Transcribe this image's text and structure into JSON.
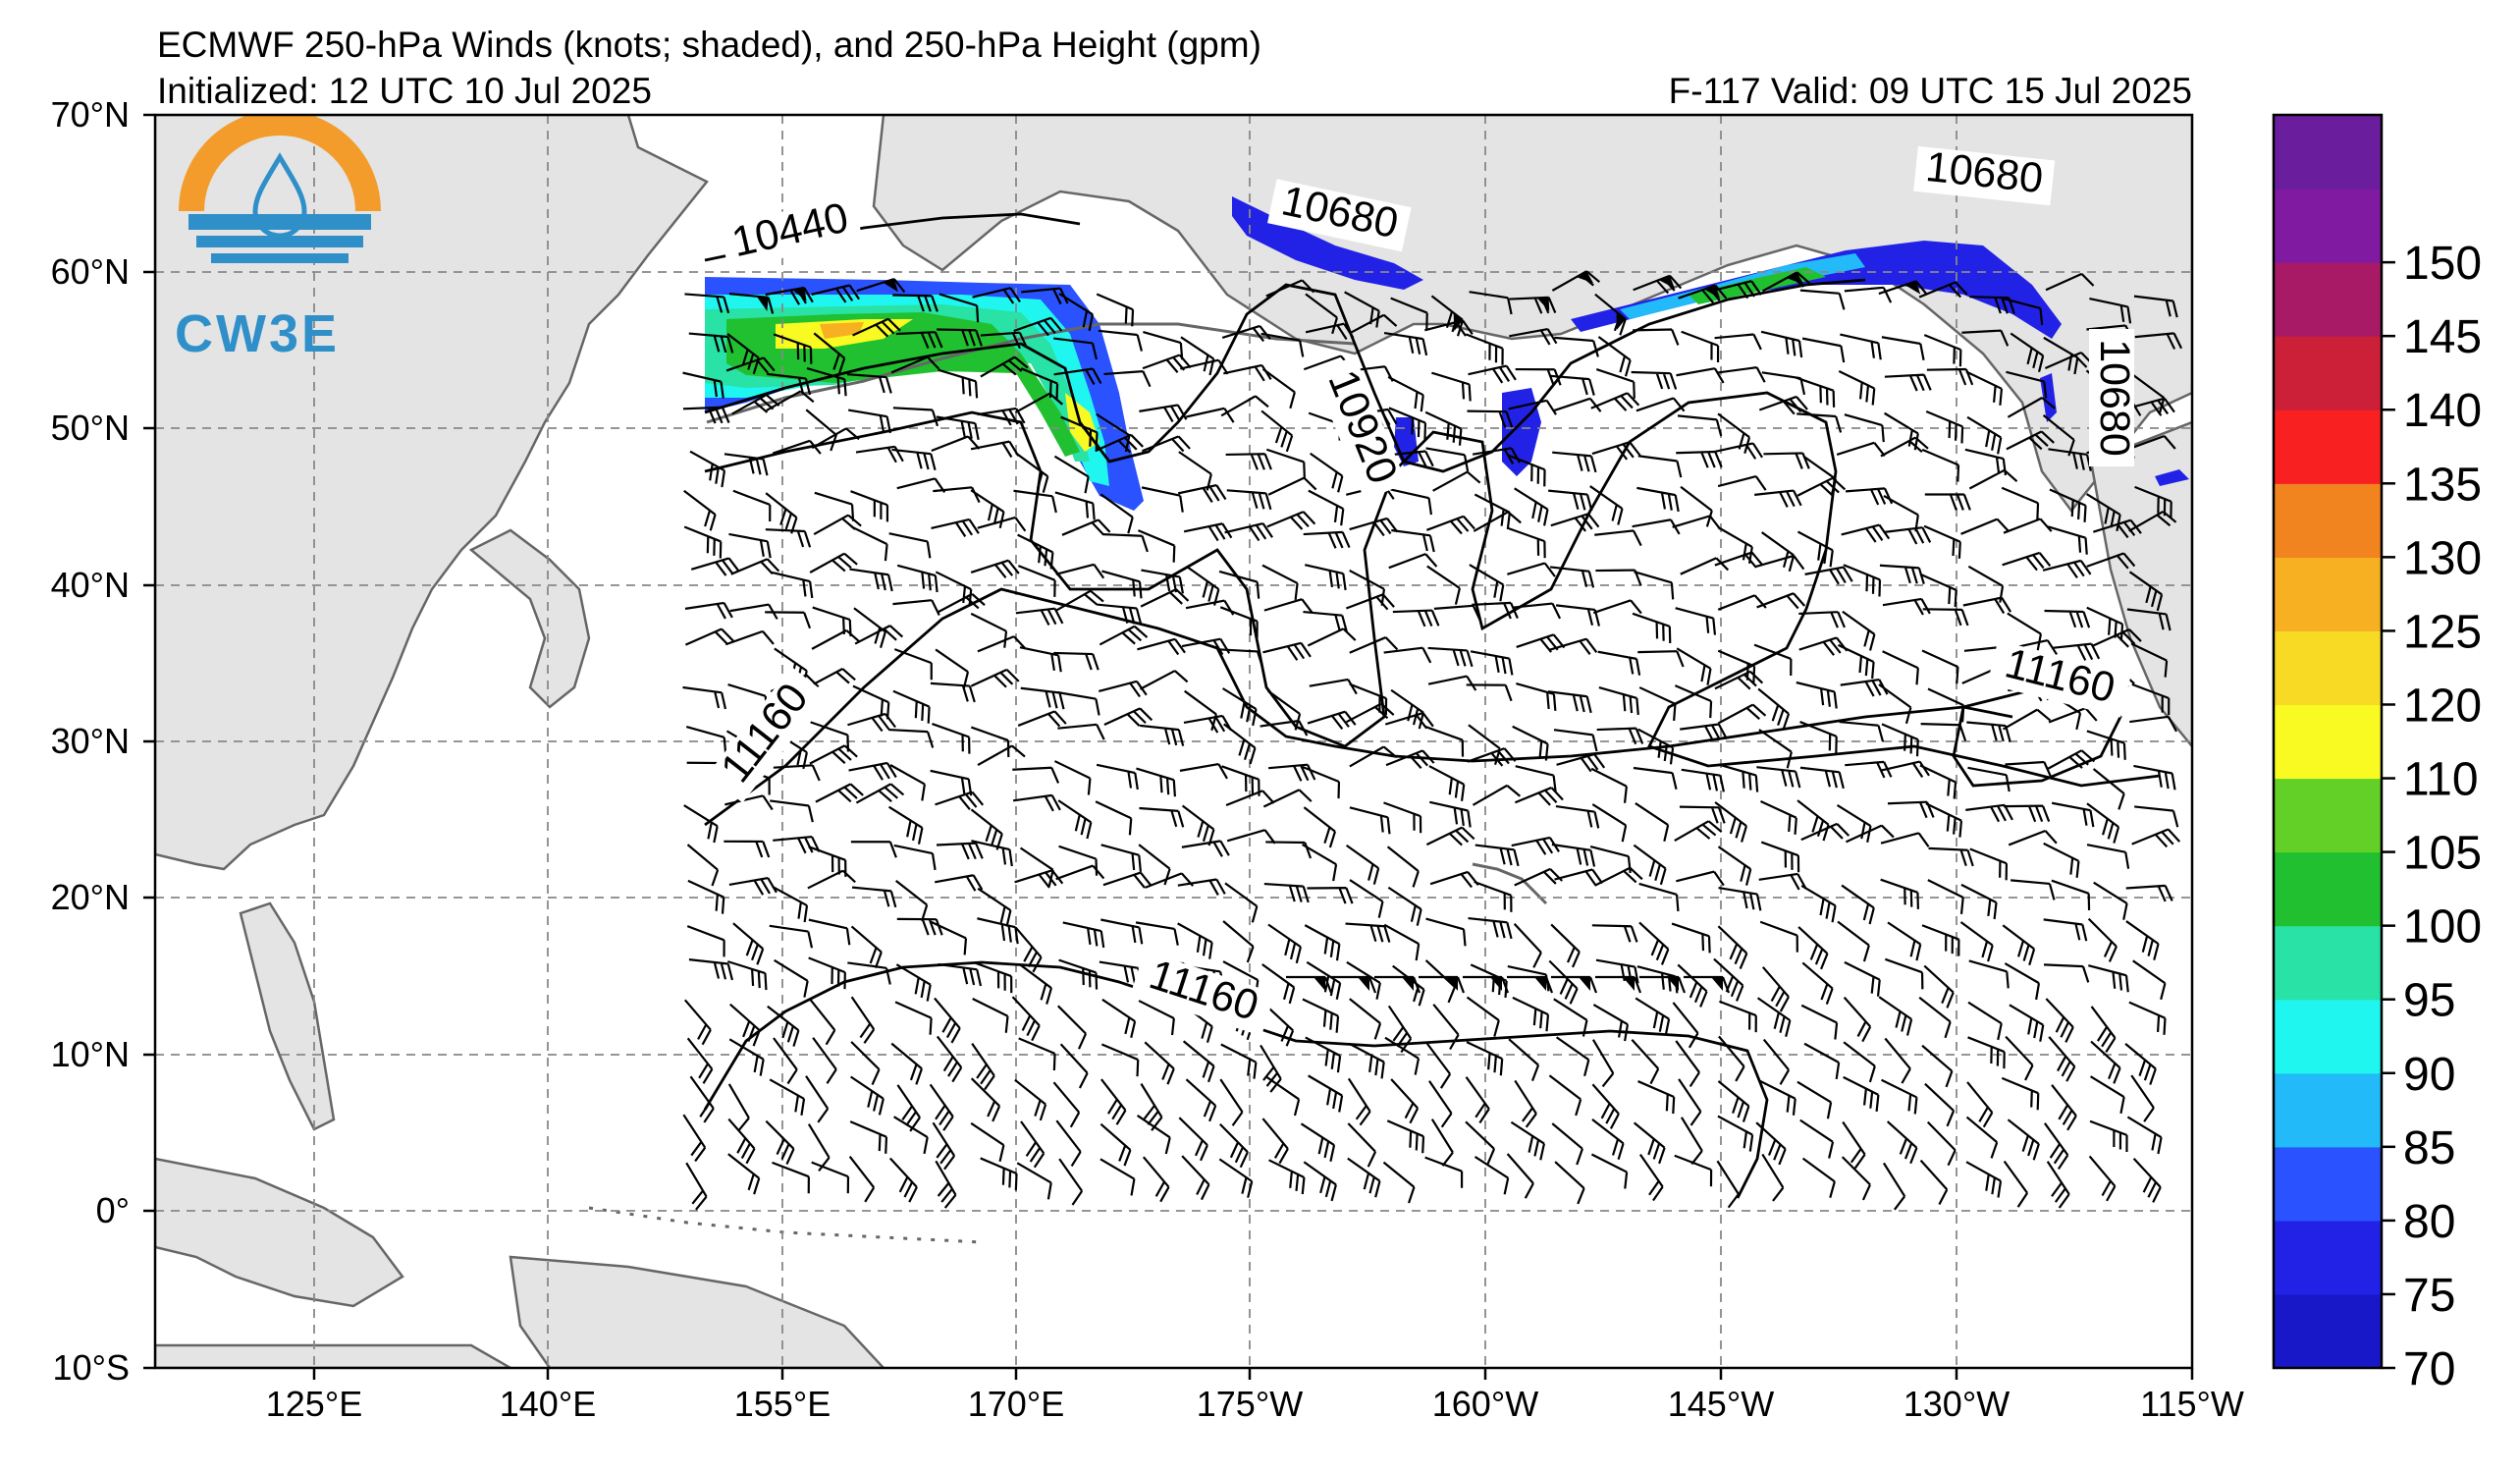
{
  "header": {
    "title": "ECMWF 250-hPa Winds (knots; shaded), and 250-hPa Height (gpm)",
    "initialized": "Initialized: 12 UTC 10 Jul 2025",
    "forecast_valid": "F-117  Valid: 09 UTC 15 Jul 2025"
  },
  "logo": {
    "text": "CW3E"
  },
  "map": {
    "lat_labels": [
      "70°N",
      "60°N",
      "50°N",
      "40°N",
      "30°N",
      "20°N",
      "10°N",
      "0°",
      "10°S"
    ],
    "lon_labels": [
      "125°E",
      "140°E",
      "155°E",
      "170°E",
      "175°W",
      "160°W",
      "145°W",
      "130°W",
      "115°W"
    ],
    "contour_labels": [
      {
        "text": "10440"
      },
      {
        "text": "10680"
      },
      {
        "text": "10680"
      },
      {
        "text": "10680"
      },
      {
        "text": "10920"
      },
      {
        "text": "11160"
      },
      {
        "text": "11160"
      },
      {
        "text": "11160"
      }
    ],
    "colors": {
      "land": "#e4e4e4",
      "ocean": "#ffffff",
      "grid": "#888888",
      "coast": "#666666"
    }
  },
  "colorbar": {
    "ticks": [
      "70",
      "75",
      "80",
      "85",
      "90",
      "95",
      "100",
      "105",
      "110",
      "120",
      "125",
      "130",
      "135",
      "140",
      "145",
      "150"
    ],
    "colors": [
      "#1818c8",
      "#2222e6",
      "#2a52ff",
      "#22baf8",
      "#20f6f0",
      "#28e2a6",
      "#20c030",
      "#62d026",
      "#f8fa22",
      "#f8da24",
      "#f6b022",
      "#f28420",
      "#f82020",
      "#cc2038",
      "#a81a66",
      "#801aa0",
      "#6a1e9e"
    ]
  }
}
